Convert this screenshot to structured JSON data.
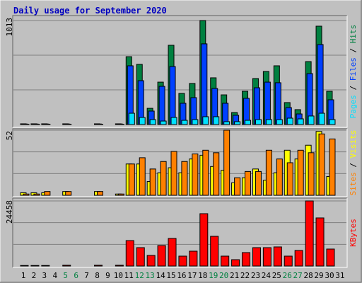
{
  "title": "Daily usage for September 2020",
  "legend_separator": " / ",
  "days": {
    "labels": [
      "1",
      "2",
      "3",
      "4",
      "5",
      "6",
      "7",
      "8",
      "9",
      "10",
      "11",
      "12",
      "13",
      "14",
      "15",
      "16",
      "17",
      "18",
      "19",
      "20",
      "21",
      "22",
      "23",
      "24",
      "25",
      "26",
      "27",
      "28",
      "29",
      "30",
      "31"
    ],
    "colors": [
      "#000000",
      "#000000",
      "#000000",
      "#000000",
      "#008040",
      "#008040",
      "#000000",
      "#000000",
      "#000000",
      "#000000",
      "#000000",
      "#008040",
      "#008040",
      "#000000",
      "#000000",
      "#000000",
      "#000000",
      "#000000",
      "#008040",
      "#008040",
      "#000000",
      "#000000",
      "#000000",
      "#000000",
      "#000000",
      "#008040",
      "#008040",
      "#000000",
      "#000000",
      "#000000",
      "#000000"
    ]
  },
  "chart_data": [
    {
      "type": "bar",
      "ylim": [
        0,
        1013
      ],
      "yticks": [
        1013
      ],
      "series": [
        {
          "name": "Hits",
          "color": "#008040",
          "values": [
            7,
            7,
            7,
            0,
            7,
            0,
            0,
            7,
            0,
            7,
            661,
            586,
            158,
            413,
            772,
            303,
            400,
            1013,
            455,
            289,
            117,
            324,
            448,
            517,
            572,
            214,
            145,
            613,
            958,
            324,
            0
          ]
        },
        {
          "name": "Files",
          "color": "#0040ff",
          "values": [
            5,
            5,
            5,
            0,
            5,
            0,
            0,
            5,
            0,
            5,
            572,
            427,
            131,
            372,
            565,
            207,
            262,
            786,
            351,
            207,
            90,
            255,
            358,
            413,
            407,
            165,
            103,
            496,
            779,
            241,
            0
          ]
        },
        {
          "name": "Pages",
          "color": "#00e0ff",
          "values": [
            3,
            3,
            3,
            0,
            3,
            0,
            0,
            3,
            0,
            3,
            110,
            69,
            48,
            34,
            69,
            41,
            48,
            76,
            76,
            28,
            28,
            41,
            48,
            48,
            48,
            62,
            55,
            83,
            110,
            48,
            0
          ]
        }
      ]
    },
    {
      "type": "bar",
      "ylim": [
        0,
        52
      ],
      "yticks": [
        52
      ],
      "series": [
        {
          "name": "Visits",
          "color": "#ffff00",
          "values": [
            2,
            2,
            2,
            0,
            3,
            0,
            0,
            3,
            0,
            1,
            25,
            25,
            11,
            18,
            22,
            18,
            29,
            32,
            23,
            20,
            10,
            14,
            21,
            12,
            18,
            36,
            29,
            40,
            51,
            15,
            0
          ]
        },
        {
          "name": "Sites",
          "color": "#ff8000",
          "values": [
            1,
            1,
            3,
            0,
            3,
            0,
            0,
            3,
            0,
            1,
            25,
            30,
            21,
            27,
            35,
            27,
            33,
            36,
            34,
            52,
            14,
            19,
            19,
            36,
            29,
            26,
            36,
            34,
            49,
            45,
            0
          ]
        }
      ]
    },
    {
      "type": "bar",
      "ylim": [
        0,
        24458
      ],
      "yticks": [
        24458
      ],
      "series": [
        {
          "name": "KBytes",
          "color": "#ff0000",
          "values": [
            200,
            200,
            200,
            0,
            300,
            0,
            0,
            300,
            0,
            300,
            9571,
            6912,
            3988,
            7710,
            10368,
            3722,
            5583,
            19673,
            11166,
            3722,
            2393,
            5051,
            6912,
            6912,
            7178,
            3722,
            5849,
            24458,
            18078,
            6380,
            0
          ]
        }
      ]
    }
  ]
}
